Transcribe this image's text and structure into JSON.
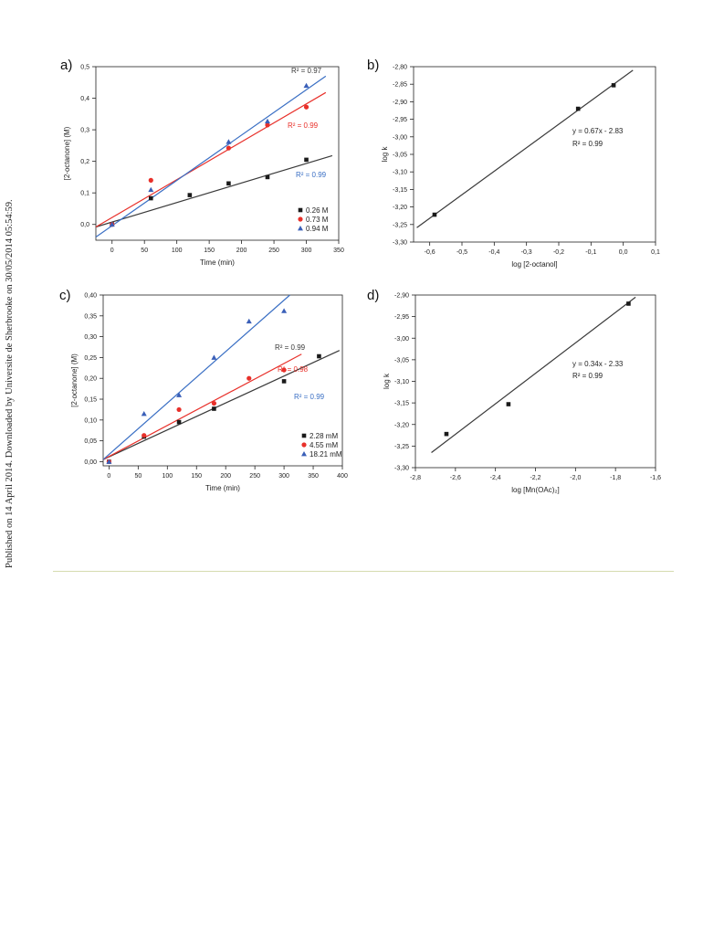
{
  "side_note": "Published on 14 April 2014. Downloaded by Universite de Sherbrooke on 30/05/2014 05:54:59.",
  "colors": {
    "black": "#1a1a1a",
    "red": "#e8302a",
    "blue": "#3a5fb8",
    "fit_black": "#3a3a3a",
    "fit_red": "#e8302a",
    "fit_blue": "#3a6fc4",
    "rule": "#d6dcb0"
  },
  "chart_data": [
    {
      "panel_label": "a)",
      "type": "scatter",
      "xlabel": "Time (min)",
      "ylabel": "[2-octanone] (M)",
      "xlim": [
        -25,
        350
      ],
      "ylim": [
        -0.05,
        0.5
      ],
      "xticks": [
        0,
        50,
        100,
        150,
        200,
        250,
        300,
        350
      ],
      "yticks": [
        0.0,
        0.1,
        0.2,
        0.3,
        0.4,
        0.5
      ],
      "xtick_labels": [
        "0",
        "50",
        "100",
        "150",
        "200",
        "250",
        "300",
        "350"
      ],
      "ytick_labels": [
        "0,0",
        "0,1",
        "0,2",
        "0,3",
        "0,4",
        "0,5"
      ],
      "legend_position": "bottom-right",
      "series": [
        {
          "name": "0.26 M",
          "marker": "square",
          "color": "#1a1a1a",
          "fit_color": "#3a3a3a",
          "x": [
            0,
            60,
            120,
            180,
            240,
            300
          ],
          "y": [
            0.0,
            0.083,
            0.093,
            0.13,
            0.15,
            0.205
          ],
          "fit": [
            [
              -25,
              -0.008
            ],
            [
              340,
              0.218
            ]
          ],
          "r2_label": "R² = 0.97"
        },
        {
          "name": "0.73 M",
          "marker": "circle",
          "color": "#e8302a",
          "fit_color": "#e8302a",
          "x": [
            0,
            60,
            180,
            240,
            300
          ],
          "y": [
            0.0,
            0.14,
            0.242,
            0.315,
            0.372
          ],
          "fit": [
            [
              -25,
              -0.008
            ],
            [
              330,
              0.418
            ]
          ],
          "r2_label": "R² = 0.99"
        },
        {
          "name": "0.94 M",
          "marker": "triangle",
          "color": "#3a5fb8",
          "fit_color": "#3a6fc4",
          "x": [
            0,
            60,
            180,
            240,
            300
          ],
          "y": [
            0.0,
            0.11,
            0.262,
            0.327,
            0.44
          ],
          "fit": [
            [
              -25,
              -0.04
            ],
            [
              330,
              0.47
            ]
          ],
          "r2_label": "R² = 0.99"
        }
      ]
    },
    {
      "panel_label": "b)",
      "type": "scatter",
      "xlabel": "log [2-octanol]",
      "ylabel": "log k",
      "xlim": [
        -0.65,
        0.1
      ],
      "ylim": [
        -3.3,
        -2.8
      ],
      "xticks": [
        -0.6,
        -0.5,
        -0.4,
        -0.3,
        -0.2,
        -0.1,
        0.0,
        0.1
      ],
      "yticks": [
        -3.3,
        -3.25,
        -3.2,
        -3.15,
        -3.1,
        -3.05,
        -3.0,
        -2.95,
        -2.9,
        -2.85,
        -2.8
      ],
      "xtick_labels": [
        "-0,6",
        "-0,5",
        "-0,4",
        "-0,3",
        "-0,2",
        "-0,1",
        "0,0",
        "0,1"
      ],
      "ytick_labels": [
        "-3,30",
        "-3,25",
        "-3,20",
        "-3,15",
        "-3,10",
        "-3,05",
        "-3,00",
        "-2,95",
        "-2,90",
        "-2,85",
        "-2,80"
      ],
      "series": [
        {
          "name": "",
          "marker": "square",
          "color": "#1a1a1a",
          "fit_color": "#3a3a3a",
          "x": [
            -0.585,
            -0.14,
            -0.03
          ],
          "y": [
            -3.222,
            -2.92,
            -2.853
          ],
          "fit": [
            [
              -0.64,
              -3.259
            ],
            [
              0.03,
              -2.81
            ]
          ]
        }
      ],
      "equation": "y = 0.67x - 2.83",
      "r2_label": "R² = 0.99"
    },
    {
      "panel_label": "c)",
      "type": "scatter",
      "xlabel": "Time (min)",
      "ylabel": "[2-octanone] (M)",
      "xlim": [
        -10,
        400
      ],
      "ylim": [
        -0.01,
        0.4
      ],
      "xticks": [
        0,
        50,
        100,
        150,
        200,
        250,
        300,
        350,
        400
      ],
      "yticks": [
        0.0,
        0.05,
        0.1,
        0.15,
        0.2,
        0.25,
        0.3,
        0.35,
        0.4
      ],
      "xtick_labels": [
        "0",
        "50",
        "100",
        "150",
        "200",
        "250",
        "300",
        "350",
        "400"
      ],
      "ytick_labels": [
        "0,00",
        "0,05",
        "0,10",
        "0,15",
        "0,20",
        "0,25",
        "0,30",
        "0,35",
        "0,40"
      ],
      "legend_position": "bottom-right",
      "series": [
        {
          "name": "2.28 mM",
          "marker": "square",
          "color": "#1a1a1a",
          "fit_color": "#3a3a3a",
          "x": [
            0,
            60,
            120,
            180,
            300,
            360
          ],
          "y": [
            0.0,
            0.06,
            0.095,
            0.127,
            0.193,
            0.253
          ],
          "fit": [
            [
              -10,
              0.005
            ],
            [
              395,
              0.267
            ]
          ],
          "r2_label": "R² = 0.99"
        },
        {
          "name": "4.55 mM",
          "marker": "circle",
          "color": "#e8302a",
          "fit_color": "#e8302a",
          "x": [
            0,
            60,
            120,
            180,
            240,
            300
          ],
          "y": [
            0.0,
            0.063,
            0.125,
            0.14,
            0.2,
            0.22
          ],
          "fit": [
            [
              -10,
              0.005
            ],
            [
              330,
              0.258
            ]
          ],
          "r2_label": "R² = 0.98"
        },
        {
          "name": "18.21 mM",
          "marker": "triangle",
          "color": "#3a5fb8",
          "fit_color": "#3a6fc4",
          "x": [
            0,
            60,
            120,
            180,
            240,
            300
          ],
          "y": [
            0.0,
            0.115,
            0.16,
            0.25,
            0.337,
            0.362
          ],
          "fit": [
            [
              -10,
              0.005
            ],
            [
              310,
              0.4
            ]
          ],
          "r2_label": "R² = 0.99"
        }
      ]
    },
    {
      "panel_label": "d)",
      "type": "scatter",
      "xlabel": "log [Mn(OAc)₂]",
      "ylabel": "log k",
      "xlim": [
        -2.8,
        -1.6
      ],
      "ylim": [
        -3.3,
        -2.9
      ],
      "xticks": [
        -2.8,
        -2.6,
        -2.4,
        -2.2,
        -2.0,
        -1.8,
        -1.6
      ],
      "yticks": [
        -3.3,
        -3.25,
        -3.2,
        -3.15,
        -3.1,
        -3.05,
        -3.0,
        -2.95,
        -2.9
      ],
      "xtick_labels": [
        "-2,8",
        "-2,6",
        "-2,4",
        "-2,2",
        "-2,0",
        "-1,8",
        "-1,6"
      ],
      "ytick_labels": [
        "-3,30",
        "-3,25",
        "-3,20",
        "-3,15",
        "-3,10",
        "-3,05",
        "-3,00",
        "-2,95",
        "-2,90"
      ],
      "series": [
        {
          "name": "",
          "marker": "square",
          "color": "#1a1a1a",
          "fit_color": "#3a3a3a",
          "x": [
            -2.645,
            -2.335,
            -1.735
          ],
          "y": [
            -3.222,
            -3.153,
            -2.92
          ],
          "fit": [
            [
              -2.72,
              -3.265
            ],
            [
              -1.7,
              -2.905
            ]
          ]
        }
      ],
      "equation": "y = 0.34x - 2.33",
      "r2_label": "R² = 0.99"
    }
  ]
}
